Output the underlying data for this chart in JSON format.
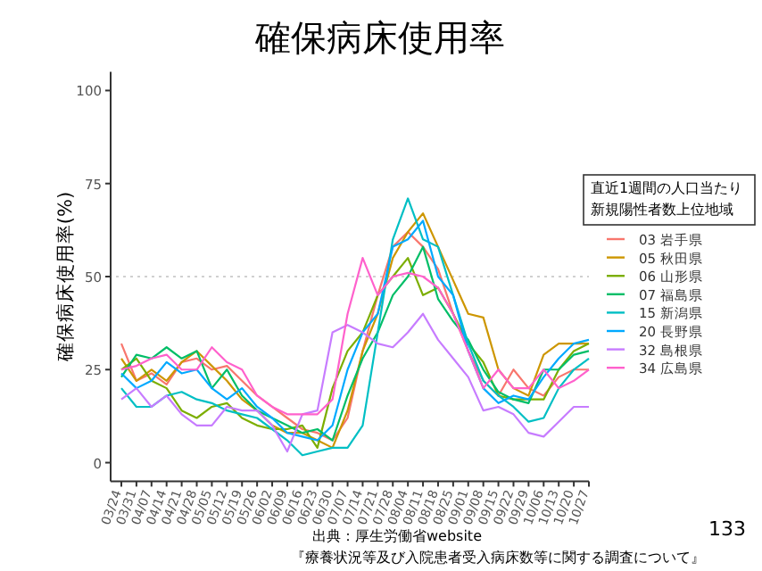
{
  "chart_data": {
    "type": "line",
    "title": "確保病床使用率",
    "ylabel": "確保病床使用率(%)",
    "legend_title": "直近1週間の人口当たり新規陽性者数上位地域",
    "categories": [
      "03/24",
      "03/31",
      "04/07",
      "04/14",
      "04/21",
      "04/28",
      "05/05",
      "05/12",
      "05/19",
      "05/26",
      "06/02",
      "06/09",
      "06/16",
      "06/23",
      "06/30",
      "07/07",
      "07/14",
      "07/21",
      "07/28",
      "08/04",
      "08/11",
      "08/18",
      "08/25",
      "09/01",
      "09/08",
      "09/15",
      "09/22",
      "09/29",
      "10/06",
      "10/13",
      "10/20",
      "10/27"
    ],
    "ylim": [
      -5,
      105
    ],
    "yticks": [
      0,
      25,
      50,
      75,
      100
    ],
    "grid": false,
    "legend": "right",
    "line_style": "solid",
    "marker": "none",
    "ref_lines": [
      {
        "axis": "y",
        "value": 50,
        "color": "#d0d0d0",
        "line_style": "dotted"
      }
    ],
    "series": [
      {
        "name": "03 岩手県",
        "color": "#f8766d",
        "values": [
          32,
          22,
          24,
          21,
          27,
          28,
          25,
          26,
          22,
          18,
          15,
          12,
          9,
          8,
          6,
          12,
          30,
          45,
          58,
          62,
          58,
          52,
          40,
          30,
          22,
          18,
          25,
          20,
          18,
          23,
          25,
          25
        ]
      },
      {
        "name": "05 秋田県",
        "color": "#cd9600",
        "values": [
          28,
          22,
          25,
          22,
          27,
          30,
          26,
          22,
          17,
          14,
          10,
          8,
          8,
          6,
          4,
          14,
          30,
          40,
          55,
          62,
          67,
          58,
          49,
          40,
          39,
          25,
          20,
          18,
          29,
          32,
          32,
          32
        ]
      },
      {
        "name": "06 山形県",
        "color": "#7cae00",
        "values": [
          25,
          28,
          22,
          20,
          14,
          12,
          15,
          16,
          12,
          10,
          9,
          9,
          10,
          4,
          20,
          30,
          35,
          45,
          50,
          55,
          45,
          47,
          40,
          32,
          27,
          18,
          17,
          17,
          17,
          25,
          30,
          32
        ]
      },
      {
        "name": "07 福島県",
        "color": "#00be67",
        "values": [
          23,
          29,
          28,
          31,
          28,
          30,
          20,
          25,
          18,
          14,
          12,
          10,
          8,
          9,
          6,
          18,
          28,
          35,
          45,
          50,
          58,
          44,
          38,
          33,
          25,
          19,
          17,
          16,
          25,
          25,
          29,
          30
        ]
      },
      {
        "name": "15 新潟県",
        "color": "#00bfc4",
        "values": [
          20,
          15,
          15,
          18,
          19,
          17,
          16,
          14,
          13,
          12,
          9,
          6,
          2,
          3,
          4,
          4,
          10,
          35,
          60,
          71,
          60,
          58,
          45,
          32,
          22,
          18,
          15,
          11,
          12,
          20,
          25,
          28
        ]
      },
      {
        "name": "20 長野県",
        "color": "#00a9ff",
        "values": [
          24,
          20,
          22,
          27,
          24,
          25,
          20,
          17,
          20,
          15,
          12,
          8,
          7,
          6,
          10,
          25,
          35,
          40,
          58,
          60,
          65,
          50,
          45,
          30,
          20,
          16,
          18,
          17,
          23,
          28,
          32,
          33
        ]
      },
      {
        "name": "32 島根県",
        "color": "#c77cff",
        "values": [
          17,
          20,
          15,
          18,
          13,
          10,
          10,
          15,
          14,
          14,
          10,
          3,
          13,
          14,
          35,
          37,
          35,
          32,
          31,
          35,
          40,
          33,
          28,
          23,
          14,
          15,
          13,
          8,
          7,
          11,
          15,
          15
        ]
      },
      {
        "name": "34 広島県",
        "color": "#ff61cc",
        "values": [
          25,
          26,
          28,
          29,
          25,
          25,
          31,
          27,
          25,
          18,
          15,
          13,
          13,
          13,
          17,
          40,
          55,
          45,
          50,
          51,
          50,
          47,
          40,
          30,
          20,
          25,
          20,
          20,
          25,
          20,
          22,
          25
        ]
      }
    ],
    "annotations": [
      "出典：厚生労働省website",
      "『療養状況等及び入院患者受入病床数等に関する調査について』",
      "133"
    ]
  }
}
